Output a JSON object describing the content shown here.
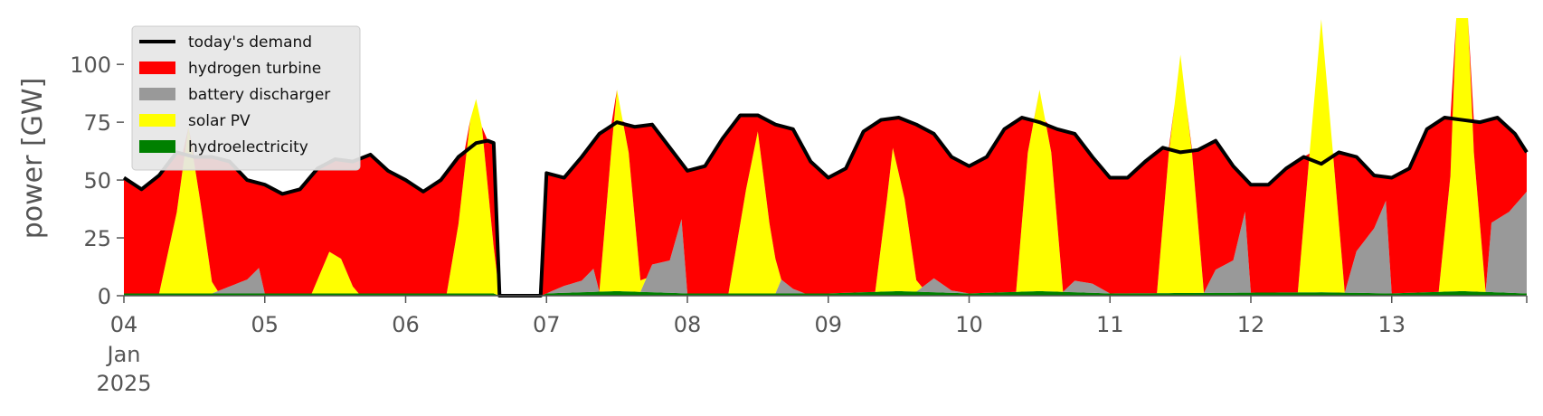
{
  "chart_data": {
    "type": "area",
    "stacked": true,
    "ylabel": "power [GW]",
    "xlabel": "",
    "ylim": [
      0,
      120
    ],
    "yticks": [
      0,
      25,
      50,
      75,
      100
    ],
    "xlim": [
      "2025-01-04T00:00",
      "2025-01-13T23:00"
    ],
    "xticks": [
      {
        "date": "2025-01-04T00:00",
        "label": "04",
        "sublabels": [
          "Jan",
          "2025"
        ]
      },
      {
        "date": "2025-01-05T00:00",
        "label": "05"
      },
      {
        "date": "2025-01-06T00:00",
        "label": "06"
      },
      {
        "date": "2025-01-07T00:00",
        "label": "07"
      },
      {
        "date": "2025-01-08T00:00",
        "label": "08"
      },
      {
        "date": "2025-01-09T00:00",
        "label": "09"
      },
      {
        "date": "2025-01-10T00:00",
        "label": "10"
      },
      {
        "date": "2025-01-11T00:00",
        "label": "11"
      },
      {
        "date": "2025-01-12T00:00",
        "label": "12"
      },
      {
        "date": "2025-01-13T00:00",
        "label": "13"
      }
    ],
    "grid": false,
    "legend_position": "top-left",
    "legend": [
      {
        "name": "today's demand",
        "kind": "line",
        "color": "#000000"
      },
      {
        "name": "hydrogen turbine",
        "kind": "area",
        "color": "#ff0000"
      },
      {
        "name": "battery discharger",
        "kind": "area",
        "color": "#999999"
      },
      {
        "name": "solar PV",
        "kind": "area",
        "color": "#ffff00"
      },
      {
        "name": "hydroelectricity",
        "kind": "area",
        "color": "#008000"
      }
    ],
    "stack_order_bottom_to_top": [
      "hydroelectricity",
      "battery discharger",
      "solar PV",
      "hydrogen turbine"
    ],
    "series": [
      {
        "name": "today's demand",
        "points": [
          [
            "2025-01-04T00:00",
            51
          ],
          [
            "2025-01-04T03:00",
            46
          ],
          [
            "2025-01-04T06:00",
            52
          ],
          [
            "2025-01-04T09:00",
            62
          ],
          [
            "2025-01-04T12:00",
            60
          ],
          [
            "2025-01-04T15:00",
            60
          ],
          [
            "2025-01-04T18:00",
            58
          ],
          [
            "2025-01-04T21:00",
            50
          ],
          [
            "2025-01-05T00:00",
            48
          ],
          [
            "2025-01-05T03:00",
            44
          ],
          [
            "2025-01-05T06:00",
            46
          ],
          [
            "2025-01-05T09:00",
            55
          ],
          [
            "2025-01-05T12:00",
            59
          ],
          [
            "2025-01-05T15:00",
            58
          ],
          [
            "2025-01-05T18:00",
            61
          ],
          [
            "2025-01-05T21:00",
            54
          ],
          [
            "2025-01-06T00:00",
            50
          ],
          [
            "2025-01-06T03:00",
            45
          ],
          [
            "2025-01-06T06:00",
            50
          ],
          [
            "2025-01-06T09:00",
            60
          ],
          [
            "2025-01-06T12:00",
            66
          ],
          [
            "2025-01-06T14:00",
            67
          ],
          [
            "2025-01-06T15:00",
            66
          ],
          [
            "2025-01-06T16:00",
            0
          ],
          [
            "2025-01-06T23:00",
            0
          ],
          [
            "2025-01-07T00:00",
            53
          ],
          [
            "2025-01-07T03:00",
            51
          ],
          [
            "2025-01-07T06:00",
            60
          ],
          [
            "2025-01-07T09:00",
            70
          ],
          [
            "2025-01-07T12:00",
            75
          ],
          [
            "2025-01-07T15:00",
            73
          ],
          [
            "2025-01-07T18:00",
            74
          ],
          [
            "2025-01-07T21:00",
            64
          ],
          [
            "2025-01-08T00:00",
            54
          ],
          [
            "2025-01-08T03:00",
            56
          ],
          [
            "2025-01-08T06:00",
            68
          ],
          [
            "2025-01-08T09:00",
            78
          ],
          [
            "2025-01-08T12:00",
            78
          ],
          [
            "2025-01-08T15:00",
            74
          ],
          [
            "2025-01-08T18:00",
            72
          ],
          [
            "2025-01-08T21:00",
            58
          ],
          [
            "2025-01-09T00:00",
            51
          ],
          [
            "2025-01-09T03:00",
            55
          ],
          [
            "2025-01-09T06:00",
            71
          ],
          [
            "2025-01-09T09:00",
            76
          ],
          [
            "2025-01-09T12:00",
            77
          ],
          [
            "2025-01-09T15:00",
            74
          ],
          [
            "2025-01-09T18:00",
            70
          ],
          [
            "2025-01-09T21:00",
            60
          ],
          [
            "2025-01-10T00:00",
            56
          ],
          [
            "2025-01-10T03:00",
            60
          ],
          [
            "2025-01-10T06:00",
            72
          ],
          [
            "2025-01-10T09:00",
            77
          ],
          [
            "2025-01-10T12:00",
            75
          ],
          [
            "2025-01-10T15:00",
            72
          ],
          [
            "2025-01-10T18:00",
            70
          ],
          [
            "2025-01-10T21:00",
            60
          ],
          [
            "2025-01-11T00:00",
            51
          ],
          [
            "2025-01-11T03:00",
            51
          ],
          [
            "2025-01-11T06:00",
            58
          ],
          [
            "2025-01-11T09:00",
            64
          ],
          [
            "2025-01-11T12:00",
            62
          ],
          [
            "2025-01-11T15:00",
            63
          ],
          [
            "2025-01-11T18:00",
            67
          ],
          [
            "2025-01-11T21:00",
            56
          ],
          [
            "2025-01-12T00:00",
            48
          ],
          [
            "2025-01-12T03:00",
            48
          ],
          [
            "2025-01-12T06:00",
            55
          ],
          [
            "2025-01-12T09:00",
            60
          ],
          [
            "2025-01-12T12:00",
            57
          ],
          [
            "2025-01-12T15:00",
            62
          ],
          [
            "2025-01-12T18:00",
            60
          ],
          [
            "2025-01-12T21:00",
            52
          ],
          [
            "2025-01-13T00:00",
            51
          ],
          [
            "2025-01-13T03:00",
            55
          ],
          [
            "2025-01-13T06:00",
            72
          ],
          [
            "2025-01-13T09:00",
            77
          ],
          [
            "2025-01-13T12:00",
            76
          ],
          [
            "2025-01-13T15:00",
            75
          ],
          [
            "2025-01-13T18:00",
            77
          ],
          [
            "2025-01-13T21:00",
            70
          ],
          [
            "2025-01-13T23:00",
            62
          ]
        ]
      },
      {
        "name": "hydroelectricity",
        "points": [
          [
            "2025-01-04T00:00",
            1
          ],
          [
            "2025-01-06T15:00",
            1
          ],
          [
            "2025-01-06T16:00",
            0
          ],
          [
            "2025-01-06T23:00",
            0
          ],
          [
            "2025-01-07T00:00",
            1
          ],
          [
            "2025-01-07T12:00",
            2
          ],
          [
            "2025-01-08T00:00",
            1
          ],
          [
            "2025-01-09T00:00",
            1
          ],
          [
            "2025-01-09T12:00",
            2
          ],
          [
            "2025-01-10T00:00",
            1
          ],
          [
            "2025-01-10T12:00",
            2
          ],
          [
            "2025-01-11T00:00",
            1
          ],
          [
            "2025-01-12T12:00",
            1.5
          ],
          [
            "2025-01-13T00:00",
            1
          ],
          [
            "2025-01-13T12:00",
            2
          ],
          [
            "2025-01-13T23:00",
            1
          ]
        ]
      },
      {
        "name": "battery discharger",
        "points": [
          [
            "2025-01-04T00:00",
            0
          ],
          [
            "2025-01-04T15:00",
            0
          ],
          [
            "2025-01-04T18:00",
            3
          ],
          [
            "2025-01-04T21:00",
            6
          ],
          [
            "2025-01-04T23:00",
            11
          ],
          [
            "2025-01-05T00:00",
            0
          ],
          [
            "2025-01-06T16:00",
            0
          ],
          [
            "2025-01-07T00:00",
            0
          ],
          [
            "2025-01-07T03:00",
            3
          ],
          [
            "2025-01-07T06:00",
            5
          ],
          [
            "2025-01-07T08:00",
            10
          ],
          [
            "2025-01-07T09:00",
            0
          ],
          [
            "2025-01-07T16:00",
            0
          ],
          [
            "2025-01-07T18:00",
            12
          ],
          [
            "2025-01-07T21:00",
            14
          ],
          [
            "2025-01-07T23:00",
            32
          ],
          [
            "2025-01-08T00:00",
            0
          ],
          [
            "2025-01-08T15:00",
            0
          ],
          [
            "2025-01-08T16:00",
            6
          ],
          [
            "2025-01-08T18:00",
            2
          ],
          [
            "2025-01-08T20:00",
            0
          ],
          [
            "2025-01-09T15:00",
            0
          ],
          [
            "2025-01-09T18:00",
            6
          ],
          [
            "2025-01-09T21:00",
            1
          ],
          [
            "2025-01-10T00:00",
            0
          ],
          [
            "2025-01-10T16:00",
            0
          ],
          [
            "2025-01-10T18:00",
            5
          ],
          [
            "2025-01-10T21:00",
            4
          ],
          [
            "2025-01-11T00:00",
            0
          ],
          [
            "2025-01-11T16:00",
            0
          ],
          [
            "2025-01-11T18:00",
            10
          ],
          [
            "2025-01-11T21:00",
            14
          ],
          [
            "2025-01-11T23:00",
            35
          ],
          [
            "2025-01-12T00:00",
            0
          ],
          [
            "2025-01-12T16:00",
            0
          ],
          [
            "2025-01-12T18:00",
            18
          ],
          [
            "2025-01-12T21:00",
            28
          ],
          [
            "2025-01-12T23:00",
            40
          ],
          [
            "2025-01-13T00:00",
            0
          ],
          [
            "2025-01-13T16:00",
            0
          ],
          [
            "2025-01-13T17:00",
            30
          ],
          [
            "2025-01-13T20:00",
            35
          ],
          [
            "2025-01-13T23:00",
            44
          ]
        ]
      },
      {
        "name": "solar PV",
        "points": [
          [
            "2025-01-04T06:00",
            0
          ],
          [
            "2025-01-04T09:00",
            35
          ],
          [
            "2025-01-04T11:00",
            72
          ],
          [
            "2025-01-04T13:00",
            40
          ],
          [
            "2025-01-04T15:00",
            5
          ],
          [
            "2025-01-04T16:00",
            0
          ],
          [
            "2025-01-05T08:00",
            0
          ],
          [
            "2025-01-05T11:00",
            18
          ],
          [
            "2025-01-05T13:00",
            15
          ],
          [
            "2025-01-05T15:00",
            3
          ],
          [
            "2025-01-05T16:00",
            0
          ],
          [
            "2025-01-06T07:00",
            0
          ],
          [
            "2025-01-06T09:00",
            30
          ],
          [
            "2025-01-06T11:00",
            75
          ],
          [
            "2025-01-06T12:00",
            84
          ],
          [
            "2025-01-06T13:00",
            72
          ],
          [
            "2025-01-06T15:00",
            20
          ],
          [
            "2025-01-06T16:00",
            0
          ],
          [
            "2025-01-07T09:00",
            0
          ],
          [
            "2025-01-07T11:00",
            60
          ],
          [
            "2025-01-07T12:00",
            87
          ],
          [
            "2025-01-07T14:00",
            60
          ],
          [
            "2025-01-07T16:00",
            5
          ],
          [
            "2025-01-07T17:00",
            0
          ],
          [
            "2025-01-08T07:00",
            0
          ],
          [
            "2025-01-08T10:00",
            45
          ],
          [
            "2025-01-08T12:00",
            70
          ],
          [
            "2025-01-08T14:00",
            30
          ],
          [
            "2025-01-08T16:00",
            0
          ],
          [
            "2025-01-09T08:00",
            0
          ],
          [
            "2025-01-09T10:00",
            40
          ],
          [
            "2025-01-09T11:00",
            62
          ],
          [
            "2025-01-09T13:00",
            40
          ],
          [
            "2025-01-09T15:00",
            5
          ],
          [
            "2025-01-09T16:00",
            0
          ],
          [
            "2025-01-10T08:00",
            0
          ],
          [
            "2025-01-10T10:00",
            60
          ],
          [
            "2025-01-10T12:00",
            87
          ],
          [
            "2025-01-10T14:00",
            60
          ],
          [
            "2025-01-10T16:00",
            0
          ],
          [
            "2025-01-11T08:00",
            0
          ],
          [
            "2025-01-11T10:00",
            60
          ],
          [
            "2025-01-11T12:00",
            103
          ],
          [
            "2025-01-11T14:00",
            60
          ],
          [
            "2025-01-11T16:00",
            0
          ],
          [
            "2025-01-12T08:00",
            0
          ],
          [
            "2025-01-12T10:00",
            60
          ],
          [
            "2025-01-12T12:00",
            118
          ],
          [
            "2025-01-12T14:00",
            60
          ],
          [
            "2025-01-12T16:00",
            0
          ],
          [
            "2025-01-13T08:00",
            0
          ],
          [
            "2025-01-13T10:00",
            50
          ],
          [
            "2025-01-13T11:00",
            120
          ],
          [
            "2025-01-13T13:00",
            120
          ],
          [
            "2025-01-13T14:00",
            60
          ],
          [
            "2025-01-13T16:00",
            0
          ]
        ]
      }
    ]
  }
}
